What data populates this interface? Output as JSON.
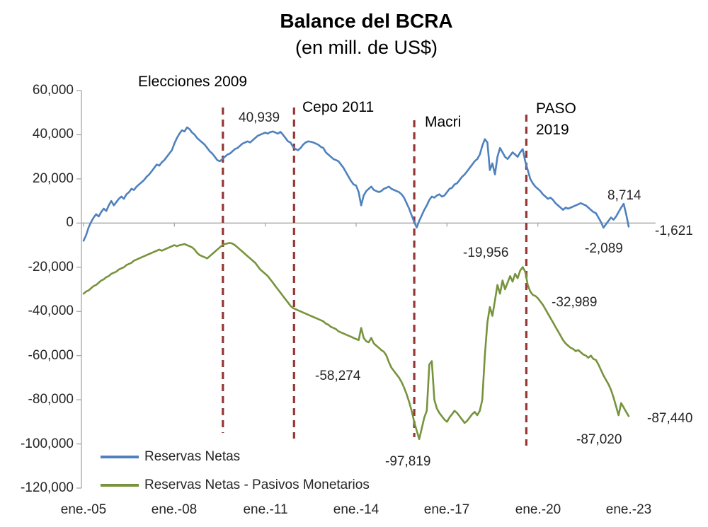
{
  "title": "Balance del BCRA",
  "subtitle": "(en mill. de US$)",
  "colors": {
    "reservas_netas": "#4F81BD",
    "reservas_menos_pasivos": "#77933C",
    "event_line": "#953735",
    "axis": "#A6A6A6",
    "text": "#262626"
  },
  "legend": [
    {
      "label": "Reservas Netas",
      "color": "#4F81BD"
    },
    {
      "label": "Reservas Netas - Pasivos Monetarios",
      "color": "#77933C"
    }
  ],
  "chart_data": {
    "type": "line",
    "title": "Balance del BCRA",
    "subtitle": "(en mill. de US$)",
    "x_axis": {
      "ticks": [
        "ene.-05",
        "ene.-08",
        "ene.-11",
        "ene.-14",
        "ene.-17",
        "ene.-20",
        "ene.-23"
      ],
      "tick_years": [
        2005,
        2008,
        2011,
        2014,
        2017,
        2020,
        2023
      ],
      "start_year": 2005,
      "end_year": 2023,
      "frequency": "monthly"
    },
    "y_axis": {
      "ticks": [
        "60,000",
        "40,000",
        "20,000",
        "0",
        "-20,000",
        "-40,000",
        "-60,000",
        "-80,000",
        "-100,000",
        "-120,000"
      ],
      "min": -120000,
      "max": 60000,
      "step": 20000
    },
    "series": [
      {
        "name": "Reservas Netas",
        "color": "#4F81BD",
        "values": [
          -8000,
          -5500,
          -2000,
          500,
          2500,
          4000,
          3000,
          5000,
          6500,
          5500,
          8000,
          10000,
          8000,
          9500,
          11000,
          12000,
          11000,
          13000,
          14000,
          15500,
          15000,
          16500,
          17500,
          18500,
          19500,
          21000,
          22000,
          23500,
          25000,
          26500,
          26000,
          27500,
          28500,
          30000,
          31500,
          33000,
          36000,
          38500,
          40500,
          42000,
          41500,
          43300,
          42500,
          41000,
          40000,
          38500,
          37500,
          36500,
          35500,
          34000,
          32500,
          31500,
          30000,
          28500,
          28000,
          29000,
          30000,
          31000,
          31500,
          32500,
          33500,
          34000,
          35000,
          36000,
          36500,
          37000,
          36500,
          37500,
          38500,
          39500,
          40000,
          40500,
          40939,
          40500,
          41200,
          41500,
          41000,
          40500,
          41300,
          40000,
          38500,
          37000,
          36500,
          34500,
          33500,
          33000,
          34000,
          35500,
          36500,
          37000,
          36800,
          36500,
          36000,
          35500,
          34500,
          34000,
          32000,
          31000,
          30000,
          29000,
          28500,
          28000,
          26500,
          25000,
          23000,
          21000,
          19000,
          17500,
          17000,
          14000,
          8000,
          12500,
          14500,
          15500,
          16500,
          15000,
          14500,
          14000,
          14500,
          15500,
          16000,
          16500,
          15500,
          15000,
          14500,
          14000,
          13000,
          11500,
          9000,
          6500,
          3500,
          500,
          -2000,
          1000,
          3500,
          6000,
          8000,
          10500,
          12000,
          11500,
          12500,
          13000,
          12000,
          12500,
          14000,
          15500,
          16000,
          17500,
          18000,
          19500,
          21000,
          22000,
          23500,
          25000,
          26500,
          28000,
          29000,
          31000,
          35000,
          38000,
          36500,
          24000,
          27000,
          22000,
          30000,
          34000,
          32000,
          30000,
          29000,
          30500,
          32000,
          31000,
          30000,
          32000,
          33500,
          28000,
          24000,
          20000,
          18000,
          16500,
          15500,
          14500,
          13000,
          12000,
          11000,
          11500,
          10500,
          9000,
          8000,
          7000,
          6000,
          7000,
          6500,
          7000,
          7500,
          8000,
          8500,
          9000,
          8500,
          8000,
          7000,
          6000,
          5000,
          4500,
          2500,
          500,
          -2089,
          -500,
          1000,
          2500,
          1500,
          3000,
          5000,
          7000,
          8714,
          4000,
          -1621
        ]
      },
      {
        "name": "Reservas Netas - Pasivos Monetarios",
        "color": "#77933C",
        "values": [
          -32000,
          -31000,
          -30500,
          -29500,
          -28500,
          -28000,
          -27000,
          -26000,
          -25500,
          -24500,
          -24000,
          -23000,
          -22500,
          -22000,
          -21000,
          -20500,
          -20000,
          -19000,
          -18500,
          -18000,
          -17000,
          -16500,
          -16000,
          -15500,
          -15000,
          -14500,
          -14000,
          -13500,
          -13000,
          -12500,
          -12000,
          -12500,
          -12000,
          -11500,
          -11000,
          -10500,
          -10000,
          -10500,
          -10000,
          -9800,
          -9500,
          -10000,
          -10500,
          -11000,
          -12000,
          -13500,
          -14500,
          -15000,
          -15500,
          -16000,
          -15000,
          -14000,
          -13000,
          -12000,
          -11000,
          -10000,
          -9500,
          -9200,
          -9000,
          -9300,
          -10000,
          -11000,
          -12000,
          -13000,
          -14000,
          -15000,
          -16000,
          -17000,
          -18000,
          -19500,
          -21000,
          -22000,
          -23000,
          -24000,
          -25500,
          -27000,
          -28500,
          -30000,
          -31500,
          -33000,
          -34500,
          -36000,
          -37500,
          -38500,
          -39000,
          -39500,
          -40000,
          -40500,
          -41000,
          -41500,
          -42000,
          -42500,
          -43000,
          -43500,
          -44000,
          -44500,
          -45500,
          -46000,
          -47000,
          -47500,
          -48000,
          -49000,
          -49500,
          -50000,
          -50500,
          -51000,
          -51500,
          -52000,
          -52500,
          -53000,
          -47500,
          -52000,
          -53500,
          -54000,
          -52000,
          -54500,
          -55500,
          -56500,
          -57500,
          -58274,
          -60000,
          -63000,
          -65500,
          -67000,
          -68500,
          -70000,
          -72000,
          -74500,
          -77500,
          -81000,
          -85000,
          -90000,
          -94000,
          -97819,
          -93000,
          -88000,
          -85000,
          -64000,
          -62500,
          -80000,
          -84000,
          -86000,
          -87500,
          -89000,
          -90000,
          -88000,
          -86500,
          -85000,
          -86000,
          -87500,
          -89000,
          -90500,
          -89500,
          -88000,
          -86500,
          -85500,
          -87000,
          -85000,
          -80000,
          -60000,
          -45000,
          -38000,
          -42000,
          -35000,
          -28000,
          -32000,
          -26000,
          -30000,
          -27000,
          -24000,
          -26500,
          -23000,
          -25000,
          -21500,
          -19956,
          -22000,
          -28000,
          -31000,
          -32500,
          -32989,
          -34000,
          -35500,
          -37000,
          -39000,
          -41000,
          -43000,
          -45000,
          -47000,
          -49000,
          -51000,
          -53000,
          -54500,
          -55500,
          -56500,
          -57000,
          -58000,
          -57500,
          -58500,
          -59500,
          -60000,
          -61000,
          -60000,
          -61500,
          -62000,
          -64000,
          -66500,
          -69000,
          -71000,
          -73000,
          -75500,
          -79000,
          -83000,
          -87020,
          -81500,
          -83500,
          -85500,
          -87440
        ]
      }
    ],
    "events": [
      {
        "label": "Elecciones 2009",
        "year": 2009.6
      },
      {
        "label": "Cepo 2011",
        "year": 2011.95
      },
      {
        "label": "Macri",
        "year": 2015.92
      },
      {
        "label": "PASO 2019",
        "year": 2019.62
      }
    ],
    "annotations": [
      {
        "text": "40,939",
        "series": "Reservas Netas"
      },
      {
        "text": "8,714",
        "series": "Reservas Netas"
      },
      {
        "text": "-1,621",
        "series": "Reservas Netas"
      },
      {
        "text": "-2,089",
        "series": "Reservas Netas"
      },
      {
        "text": "-19,956",
        "series": "Reservas Netas - Pasivos Monetarios"
      },
      {
        "text": "-32,989",
        "series": "Reservas Netas - Pasivos Monetarios"
      },
      {
        "text": "-58,274",
        "series": "Reservas Netas - Pasivos Monetarios"
      },
      {
        "text": "-97,819",
        "series": "Reservas Netas - Pasivos Monetarios"
      },
      {
        "text": "-87,020",
        "series": "Reservas Netas - Pasivos Monetarios"
      },
      {
        "text": "-87,440",
        "series": "Reservas Netas - Pasivos Monetarios"
      }
    ]
  }
}
